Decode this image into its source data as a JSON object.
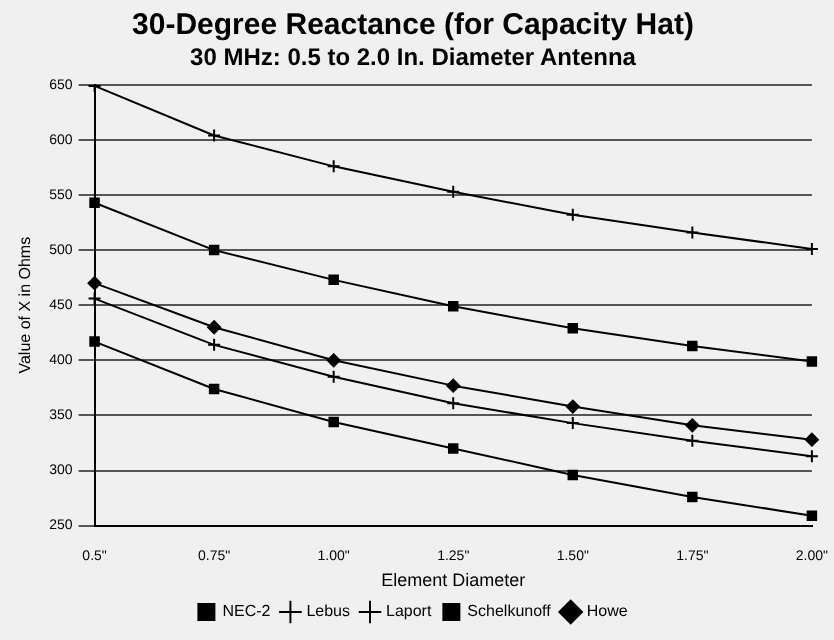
{
  "chart_data": {
    "type": "line",
    "title": "30-Degree Reactance (for Capacity Hat)",
    "subtitle": "30 MHz: 0.5 to 2.0 In. Diameter Antenna",
    "xlabel": "Element Diameter",
    "ylabel": "Value of X in Ohms",
    "categories": [
      "0.5\"",
      "0.75\"",
      "1.00\"",
      "1.25\"",
      "1.50\"",
      "1.75\"",
      "2.00\""
    ],
    "series": [
      {
        "name": "NEC-2",
        "color": "#000000",
        "marker": "square",
        "values": [
          417,
          374,
          344,
          320,
          296,
          276,
          259
        ]
      },
      {
        "name": "Lebus",
        "color": "#000000",
        "marker": "cross",
        "values": [
          456,
          414,
          385,
          361,
          343,
          327,
          313
        ]
      },
      {
        "name": "Laport",
        "color": "#000000",
        "marker": "cross",
        "values": [
          649,
          604,
          576,
          553,
          532,
          516,
          501
        ]
      },
      {
        "name": "Schelkunoff",
        "color": "#000000",
        "marker": "square",
        "values": [
          543,
          500,
          473,
          449,
          429,
          413,
          399
        ]
      },
      {
        "name": "Howe",
        "color": "#000000",
        "marker": "diamond",
        "values": [
          470,
          430,
          400,
          377,
          358,
          341,
          328
        ]
      }
    ],
    "ylim": [
      250,
      650
    ],
    "yticks": [
      250,
      300,
      350,
      400,
      450,
      500,
      550,
      600,
      650
    ],
    "grid": "y",
    "legend": "bottom",
    "line_style": "solid"
  }
}
